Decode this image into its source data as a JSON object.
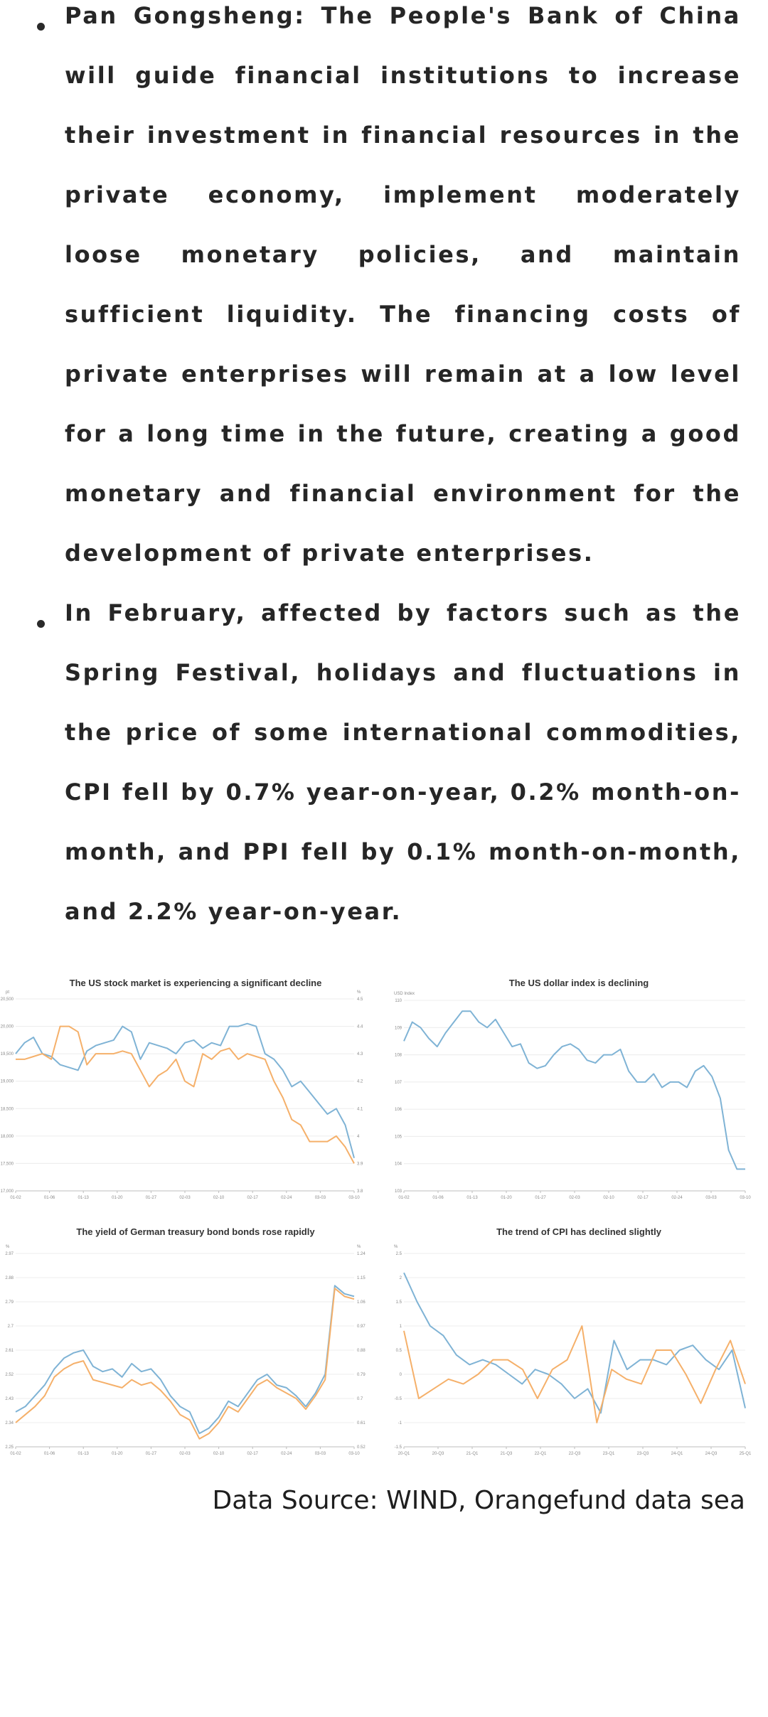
{
  "bullets": [
    "Pan Gongsheng: The People's Bank of China will guide financial institutions to increase their investment in financial resources in the private economy, implement moderately loose monetary policies, and maintain sufficient liquidity. The financing costs of private enterprises will remain at a low level for a long time in the future, creating a good monetary and financial environment for the development of private enterprises.",
    "In February, affected by factors such as the Spring Festival, holidays and fluctuations in the price of some international commodities, CPI fell by 0.7% year-on-year, 0.2% month-on-month, and PPI fell by 0.1% month-on-month, and 2.2% year-on-year."
  ],
  "source": "Data Source: WIND, Orangefund data sea",
  "colors": {
    "blue": "#7fb3d5",
    "orange": "#f5b06a",
    "grid": "#ececec",
    "axis": "#bdbdbd"
  },
  "chart_data": [
    {
      "type": "line",
      "title": "The US stock market is experiencing a significant decline",
      "left_unit": "pt",
      "right_unit": "%",
      "x_labels": [
        "01-02",
        "01-06",
        "01-13",
        "01-20",
        "01-27",
        "02-03",
        "02-10",
        "02-17",
        "02-24",
        "03-03",
        "03-10"
      ],
      "y_ticks": [
        "20,500",
        "20,000",
        "19,500",
        "19,000",
        "18,500",
        "18,000",
        "17,500",
        "17,000"
      ],
      "y2_ticks": [
        "4.5",
        "4.4",
        "4.3",
        "4.2",
        "4.1",
        "4",
        "3.9",
        "3.8"
      ],
      "ylim": [
        17000,
        20500
      ],
      "y2lim": [
        3.8,
        4.5
      ],
      "series": [
        {
          "color": "blue",
          "axis": "left",
          "values": [
            19500,
            19700,
            19800,
            19500,
            19450,
            19300,
            19250,
            19200,
            19550,
            19650,
            19700,
            19750,
            20000,
            19900,
            19400,
            19700,
            19650,
            19600,
            19500,
            19700,
            19750,
            19600,
            19700,
            19650,
            20000,
            20000,
            20050,
            20000,
            19500,
            19400,
            19200,
            18900,
            19000,
            18800,
            18600,
            18400,
            18500,
            18200,
            17600
          ]
        },
        {
          "color": "orange",
          "axis": "left",
          "values": [
            19400,
            19400,
            19450,
            19500,
            19400,
            20000,
            20000,
            19900,
            19300,
            19500,
            19500,
            19500,
            19550,
            19500,
            19200,
            18900,
            19100,
            19200,
            19400,
            19000,
            18900,
            19500,
            19400,
            19550,
            19600,
            19400,
            19500,
            19450,
            19400,
            19000,
            18700,
            18300,
            18200,
            17900,
            17900,
            17900,
            18000,
            17800,
            17500
          ]
        }
      ]
    },
    {
      "type": "line",
      "title": "The US dollar index is declining",
      "left_unit": "USD Index",
      "x_labels": [
        "01-02",
        "01-06",
        "01-13",
        "01-20",
        "01-27",
        "02-03",
        "02-10",
        "02-17",
        "02-24",
        "03-03",
        "03-10"
      ],
      "y_ticks": [
        "110",
        "109",
        "108",
        "107",
        "106",
        "105",
        "104",
        "103"
      ],
      "ylim": [
        103,
        110
      ],
      "series": [
        {
          "color": "blue",
          "axis": "left",
          "values": [
            108.5,
            109.2,
            109.0,
            108.6,
            108.3,
            108.8,
            109.2,
            109.6,
            109.6,
            109.2,
            109.0,
            109.3,
            108.8,
            108.3,
            108.4,
            107.7,
            107.5,
            107.6,
            108.0,
            108.3,
            108.4,
            108.2,
            107.8,
            107.7,
            108.0,
            108.0,
            108.2,
            107.4,
            107.0,
            107.0,
            107.3,
            106.8,
            107.0,
            107.0,
            106.8,
            107.4,
            107.6,
            107.2,
            106.4,
            104.5,
            103.8,
            103.8
          ]
        }
      ]
    },
    {
      "type": "line",
      "title": "The yield of German treasury bond bonds rose rapidly",
      "left_unit": "%",
      "right_unit": "%",
      "x_labels": [
        "01-02",
        "01-06",
        "01-13",
        "01-20",
        "01-27",
        "02-03",
        "02-10",
        "02-17",
        "02-24",
        "03-03",
        "03-10"
      ],
      "y_ticks": [
        "2.97",
        "2.88",
        "2.79",
        "2.7",
        "2.61",
        "2.52",
        "2.43",
        "2.34",
        "2.25"
      ],
      "y2_ticks": [
        "1.24",
        "1.15",
        "1.06",
        "0.97",
        "0.88",
        "0.79",
        "0.7",
        "0.61",
        "0.52"
      ],
      "ylim": [
        2.25,
        2.97
      ],
      "y2lim": [
        0.52,
        1.24
      ],
      "series": [
        {
          "color": "blue",
          "axis": "left",
          "values": [
            2.38,
            2.4,
            2.44,
            2.48,
            2.54,
            2.58,
            2.6,
            2.61,
            2.55,
            2.53,
            2.54,
            2.51,
            2.56,
            2.53,
            2.54,
            2.5,
            2.44,
            2.4,
            2.38,
            2.3,
            2.32,
            2.36,
            2.42,
            2.4,
            2.45,
            2.5,
            2.52,
            2.48,
            2.47,
            2.44,
            2.4,
            2.45,
            2.52,
            2.85,
            2.82,
            2.81
          ]
        },
        {
          "color": "orange",
          "axis": "left",
          "values": [
            2.34,
            2.37,
            2.4,
            2.44,
            2.51,
            2.54,
            2.56,
            2.57,
            2.5,
            2.49,
            2.48,
            2.47,
            2.5,
            2.48,
            2.49,
            2.46,
            2.42,
            2.37,
            2.35,
            2.28,
            2.3,
            2.34,
            2.4,
            2.38,
            2.43,
            2.48,
            2.5,
            2.47,
            2.45,
            2.43,
            2.39,
            2.44,
            2.5,
            2.84,
            2.81,
            2.8
          ]
        }
      ]
    },
    {
      "type": "line",
      "title": "The trend of CPI has declined slightly",
      "left_unit": "%",
      "x_labels": [
        "20-Q1",
        "20-Q3",
        "21-Q1",
        "21-Q3",
        "22-Q1",
        "22-Q3",
        "23-Q1",
        "23-Q3",
        "24-Q1",
        "24-Q3",
        "25-Q1"
      ],
      "y_ticks": [
        "2.5",
        "2",
        "1.5",
        "1",
        "0.5",
        "0",
        "-0.5",
        "-1",
        "-1.5"
      ],
      "ylim": [
        -1.5,
        2.5
      ],
      "series": [
        {
          "color": "blue",
          "axis": "left",
          "values": [
            2.1,
            1.5,
            1.0,
            0.8,
            0.4,
            0.2,
            0.3,
            0.2,
            0.0,
            -0.2,
            0.1,
            0.0,
            -0.2,
            -0.5,
            -0.3,
            -0.8,
            0.7,
            0.1,
            0.3,
            0.3,
            0.2,
            0.5,
            0.6,
            0.3,
            0.1,
            0.5,
            -0.7
          ]
        },
        {
          "color": "orange",
          "axis": "left",
          "values": [
            0.9,
            -0.5,
            -0.3,
            -0.1,
            -0.2,
            0.0,
            0.3,
            0.3,
            0.1,
            -0.5,
            0.1,
            0.3,
            1.0,
            -1.0,
            0.1,
            -0.1,
            -0.2,
            0.5,
            0.5,
            0.0,
            -0.6,
            0.1,
            0.7,
            -0.2
          ]
        }
      ]
    }
  ]
}
